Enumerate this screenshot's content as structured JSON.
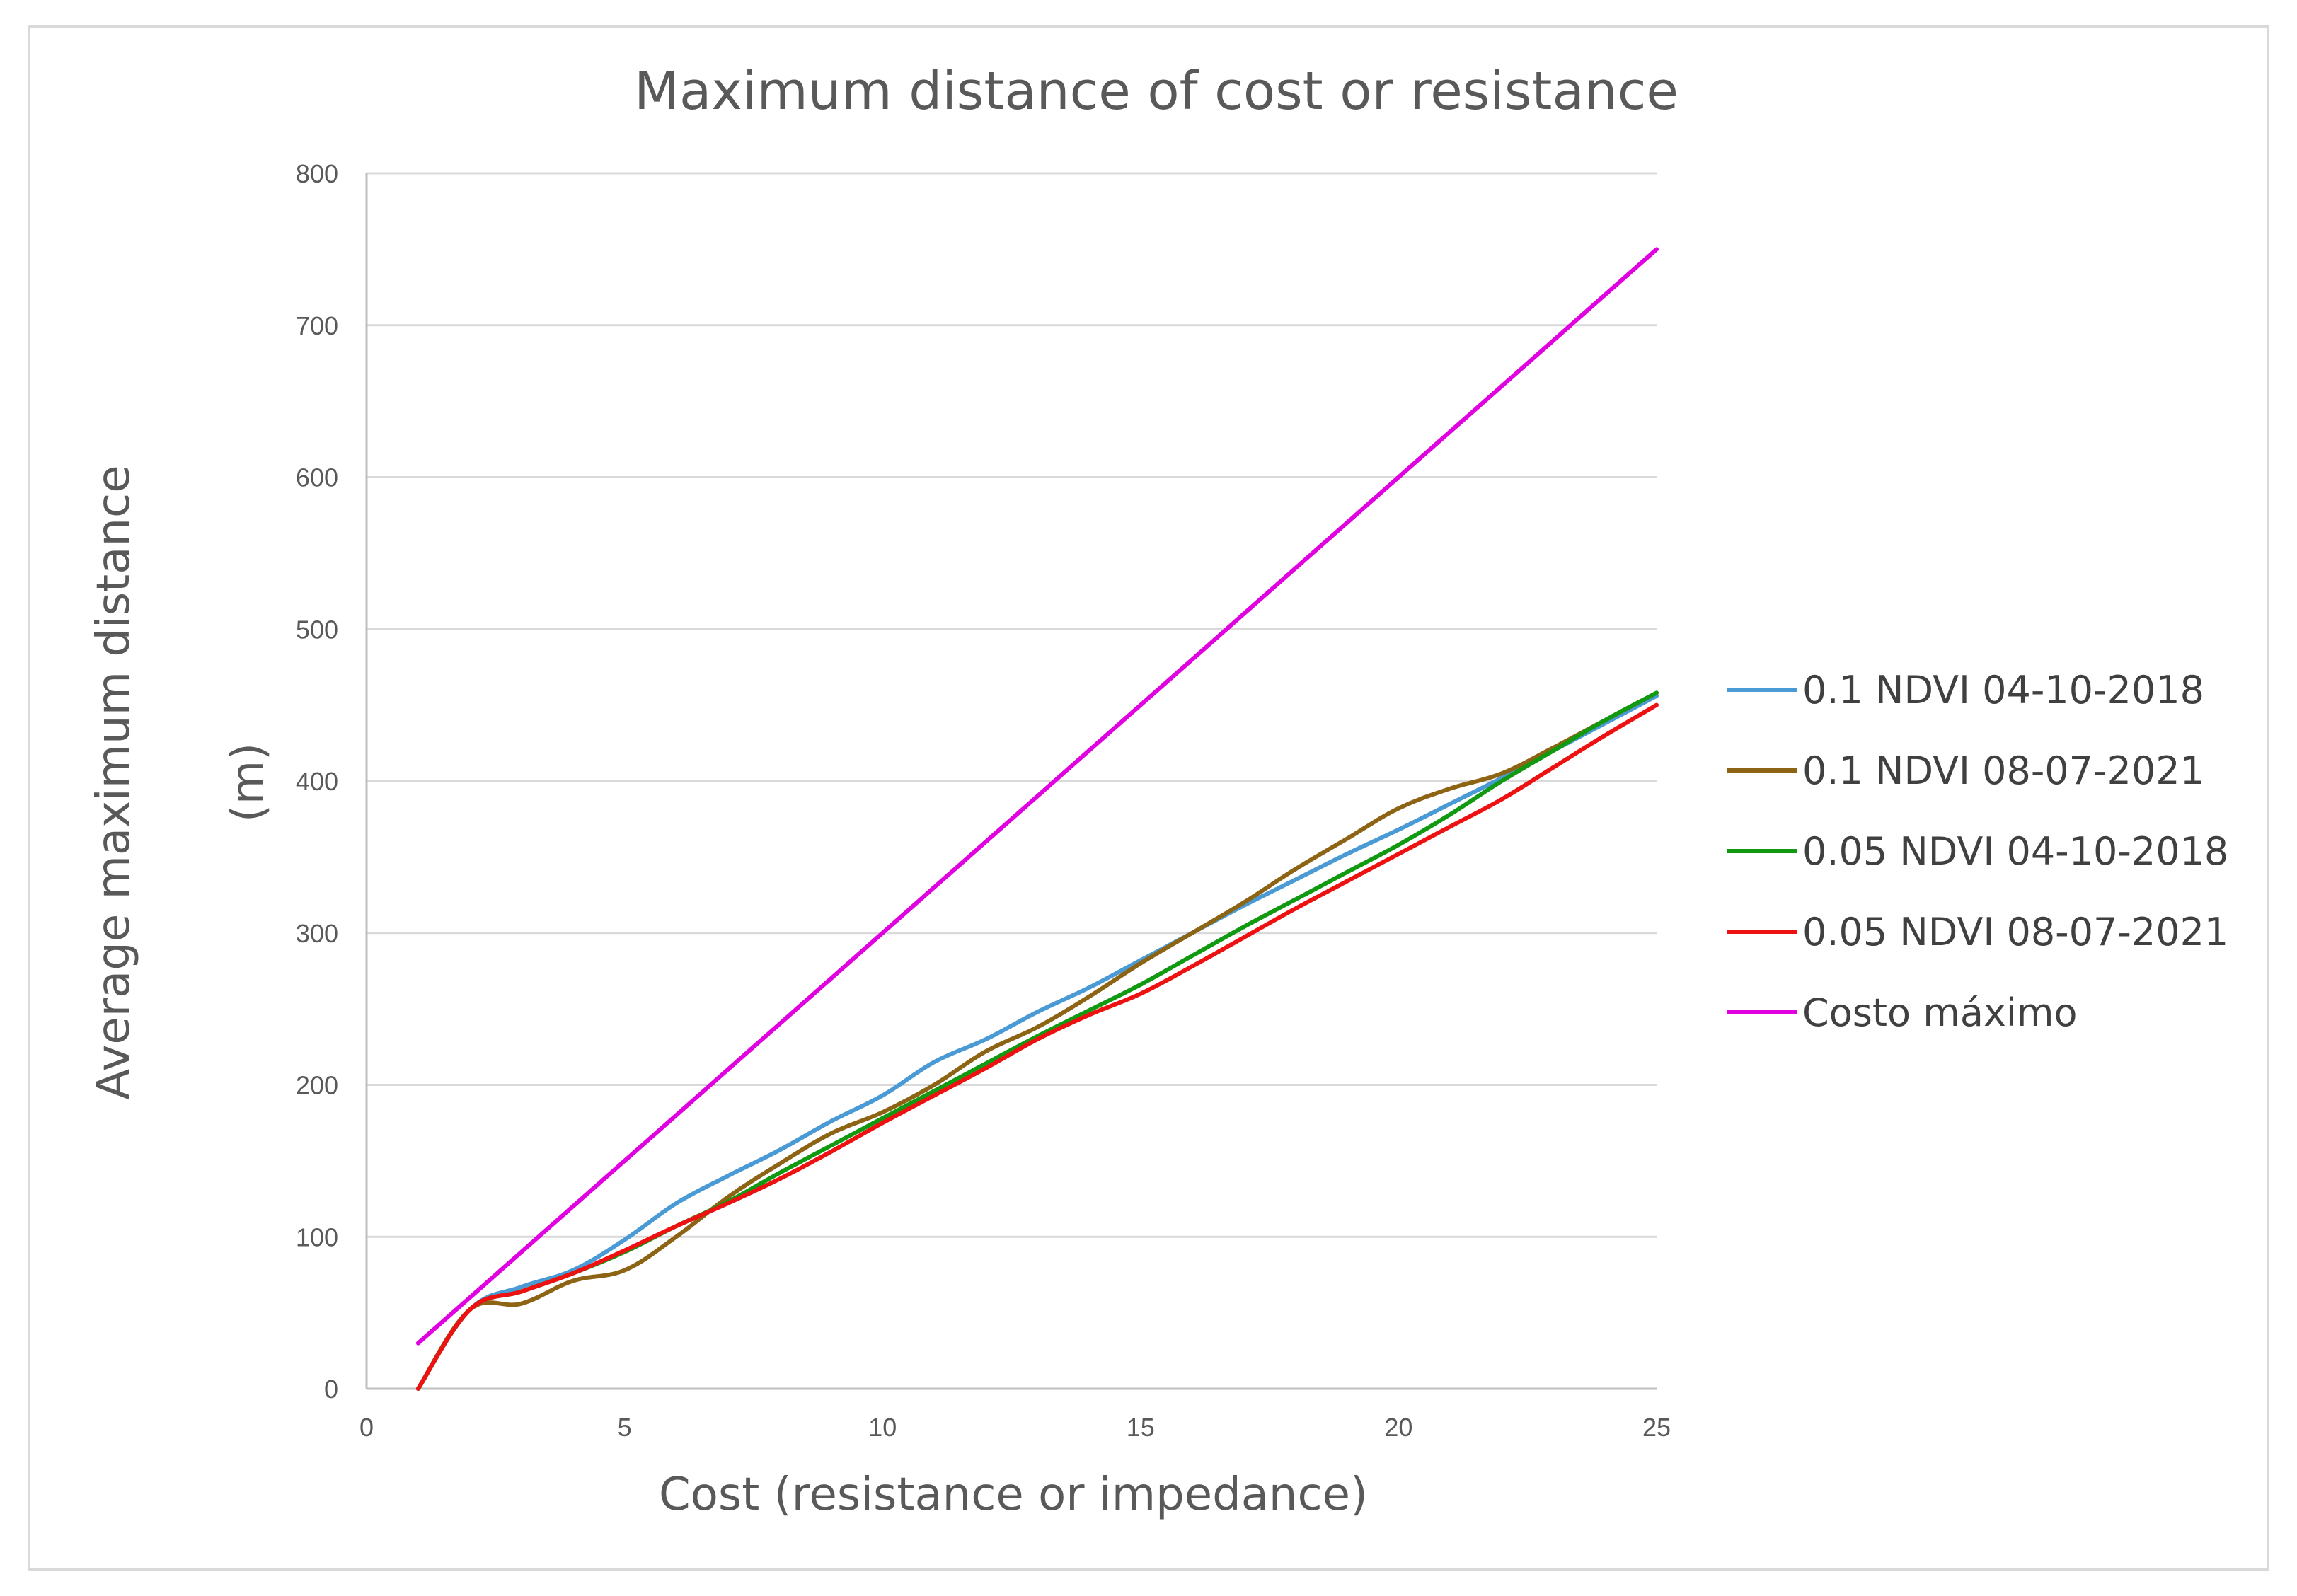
{
  "chart_data": {
    "type": "line",
    "title": "Maximum distance of cost or resistance",
    "xlabel": "Cost (resistance or impedance)",
    "ylabel_lines": [
      "Average maximum distance",
      "(m)"
    ],
    "xlim": [
      0,
      25
    ],
    "ylim": [
      0,
      800
    ],
    "xticks": [
      0,
      5,
      10,
      15,
      20,
      25
    ],
    "yticks": [
      0,
      100,
      200,
      300,
      400,
      500,
      600,
      700,
      800
    ],
    "grid": true,
    "legend_position": "right",
    "x": [
      1,
      2,
      3,
      4,
      5,
      6,
      7,
      8,
      9,
      10,
      11,
      12,
      13,
      14,
      15,
      16,
      17,
      18,
      19,
      20,
      21,
      22,
      23,
      24,
      25
    ],
    "series": [
      {
        "name": "0.1 NDVI 04-10-2018",
        "color": "#4a9bd5",
        "values": [
          0,
          52,
          67,
          78,
          98,
          122,
          140,
          157,
          176,
          193,
          215,
          230,
          248,
          264,
          282,
          300,
          318,
          335,
          352,
          368,
          385,
          402,
          420,
          438,
          456
        ]
      },
      {
        "name": "0.1 NDVI 08-07-2021",
        "color": "#8c6414",
        "values": [
          0,
          52,
          56,
          71,
          78,
          100,
          126,
          148,
          168,
          182,
          200,
          222,
          238,
          258,
          280,
          300,
          320,
          342,
          362,
          382,
          395,
          405,
          422,
          440,
          458
        ]
      },
      {
        "name": "0.05 NDVI 04-10-2018",
        "color": "#119a11",
        "values": [
          0,
          52,
          64,
          76,
          90,
          107,
          123,
          142,
          160,
          178,
          196,
          214,
          232,
          249,
          266,
          285,
          304,
          322,
          340,
          358,
          378,
          400,
          420,
          440,
          458
        ]
      },
      {
        "name": "0.05 NDVI 08-07-2021",
        "color": "#ee1111",
        "values": [
          0,
          52,
          64,
          76,
          91,
          107,
          122,
          138,
          156,
          175,
          193,
          211,
          230,
          246,
          260,
          278,
          297,
          316,
          334,
          352,
          370,
          388,
          409,
          430,
          450
        ]
      },
      {
        "name": "Costo máximo",
        "color": "#e000e0",
        "values": [
          30,
          60,
          90,
          120,
          150,
          180,
          210,
          240,
          270,
          300,
          330,
          360,
          390,
          420,
          450,
          480,
          510,
          540,
          570,
          600,
          630,
          660,
          690,
          720,
          750
        ]
      }
    ]
  }
}
